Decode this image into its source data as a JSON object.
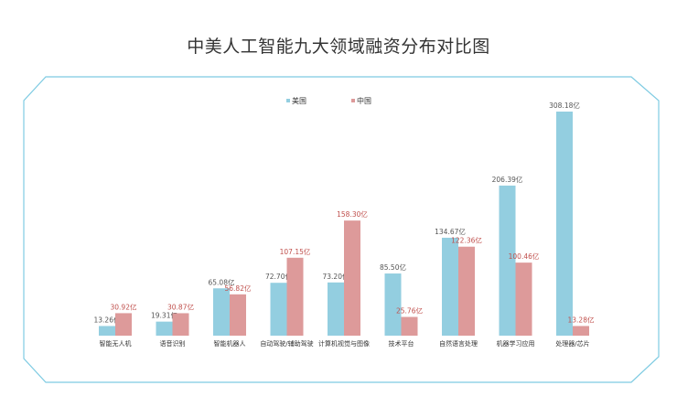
{
  "title": "中美人工智能九大领域融资分布对比图",
  "colors": {
    "frame": "#7ecbe2",
    "usa": "#93cee0",
    "china": "#dd9a9a",
    "usa_label": "#555555",
    "china_label": "#c0504d"
  },
  "chart_data": {
    "type": "bar",
    "title": "中美人工智能九大领域融资分布对比图",
    "categories": [
      "智能无人机",
      "语音识别",
      "智能机器人",
      "自动驾驶/辅助驾驶",
      "计算机视觉与图像",
      "技术平台",
      "自然语言处理",
      "机器学习应用",
      "处理器/芯片"
    ],
    "series": [
      {
        "name": "美国",
        "values": [
          13.26,
          19.31,
          65.08,
          72.7,
          73.2,
          85.5,
          134.67,
          206.39,
          308.18
        ],
        "labels": [
          "13.26亿",
          "19.31亿",
          "65.08亿",
          "72.70亿",
          "73.20亿",
          "85.50亿",
          "134.67亿",
          "206.39亿",
          "308.18亿"
        ]
      },
      {
        "name": "中国",
        "values": [
          30.92,
          30.87,
          56.82,
          107.15,
          158.3,
          25.76,
          122.36,
          100.46,
          13.28
        ],
        "labels": [
          "30.92亿",
          "30.87亿",
          "56.82亿",
          "107.15亿",
          "158.30亿",
          "25.76亿",
          "122.36亿",
          "100.46亿",
          "13.28亿"
        ]
      }
    ],
    "ylim": [
      0,
      310
    ],
    "legend_position": "top-center",
    "grid": false
  }
}
